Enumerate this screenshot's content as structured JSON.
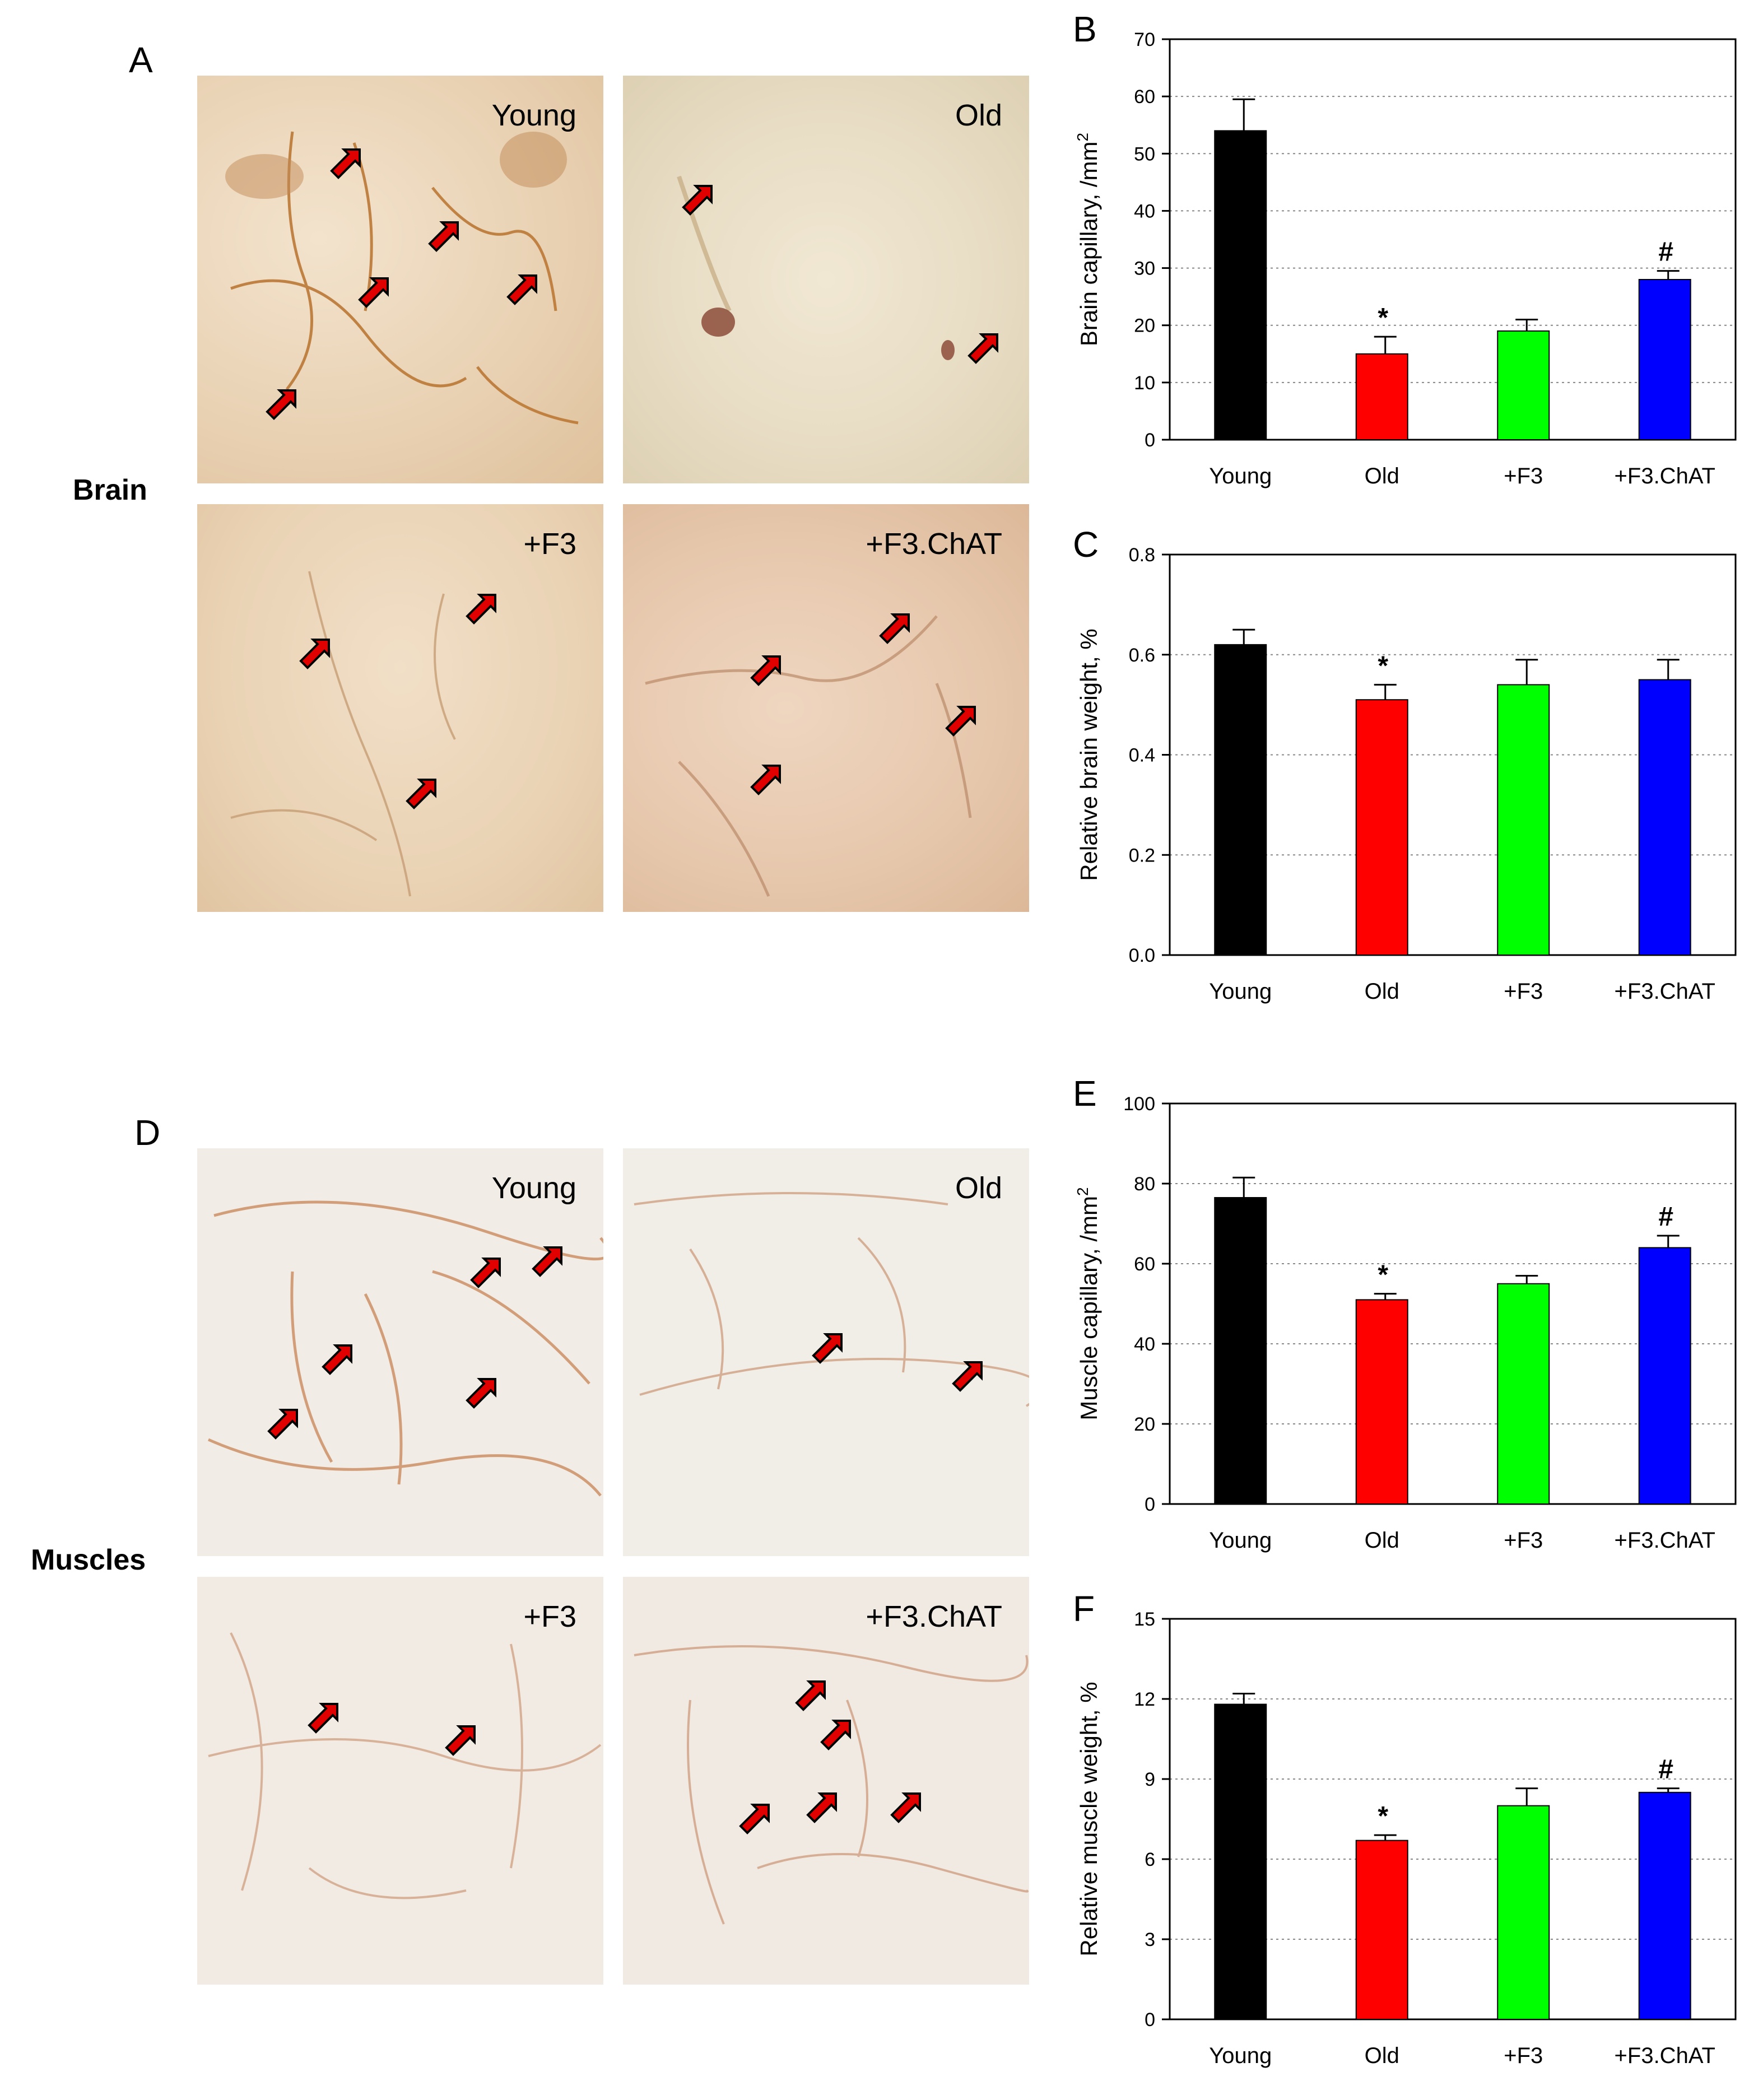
{
  "panel_letters": {
    "a": "A",
    "b": "B",
    "c": "C",
    "d": "D",
    "e": "E",
    "f": "F"
  },
  "row_labels": {
    "brain": "Brain",
    "muscles": "Muscles"
  },
  "micrographs": {
    "brain": [
      "Young",
      "Old",
      "+F3",
      "+F3.ChAT"
    ],
    "muscles": [
      "Young",
      "Old",
      "+F3",
      "+F3.ChAT"
    ]
  },
  "colors": {
    "young": "#000000",
    "old": "#ff0000",
    "f3": "#00ff00",
    "f3chat": "#0000ff",
    "arrow": "#e00000"
  },
  "chart_data": [
    {
      "id": "B",
      "type": "bar",
      "ylabel": "Brain capillary, /mm",
      "ylabel_sup": "2",
      "categories": [
        "Young",
        "Old",
        "+F3",
        "+F3.ChAT"
      ],
      "values": [
        54,
        15,
        19,
        28
      ],
      "errors": [
        5.5,
        3,
        2,
        1.5
      ],
      "annotations": [
        "",
        "*",
        "",
        "#"
      ],
      "ylim": [
        0,
        70
      ],
      "yticks": [
        0,
        10,
        20,
        30,
        40,
        50,
        60,
        70
      ],
      "tick_labels": [
        "0",
        "10",
        "20",
        "30",
        "40",
        "50",
        "60",
        "70"
      ],
      "grid": true
    },
    {
      "id": "C",
      "type": "bar",
      "ylabel": "Relative brain weight, %",
      "ylabel_sup": "",
      "categories": [
        "Young",
        "Old",
        "+F3",
        "+F3.ChAT"
      ],
      "values": [
        0.62,
        0.51,
        0.54,
        0.55
      ],
      "errors": [
        0.03,
        0.03,
        0.05,
        0.04
      ],
      "annotations": [
        "",
        "*",
        "",
        ""
      ],
      "ylim": [
        0,
        0.8
      ],
      "yticks": [
        0,
        0.2,
        0.4,
        0.6,
        0.8
      ],
      "tick_labels": [
        "0.0",
        "0.2",
        "0.4",
        "0.6",
        "0.8"
      ],
      "grid": true
    },
    {
      "id": "E",
      "type": "bar",
      "ylabel": "Muscle capillary, /mm",
      "ylabel_sup": "2",
      "categories": [
        "Young",
        "Old",
        "+F3",
        "+F3.ChAT"
      ],
      "values": [
        76.5,
        51,
        55,
        64
      ],
      "errors": [
        5,
        1.5,
        2,
        3
      ],
      "annotations": [
        "",
        "*",
        "",
        "#"
      ],
      "ylim": [
        0,
        100
      ],
      "yticks": [
        0,
        20,
        40,
        60,
        80,
        100
      ],
      "tick_labels": [
        "0",
        "20",
        "40",
        "60",
        "80",
        "100"
      ],
      "grid": true
    },
    {
      "id": "F",
      "type": "bar",
      "ylabel": "Relative muscle weight, %",
      "ylabel_sup": "",
      "categories": [
        "Young",
        "Old",
        "+F3",
        "+F3.ChAT"
      ],
      "values": [
        11.8,
        6.7,
        8.0,
        8.5
      ],
      "errors": [
        0.4,
        0.2,
        0.65,
        0.15
      ],
      "annotations": [
        "",
        "*",
        "",
        "#"
      ],
      "ylim": [
        0,
        15
      ],
      "yticks": [
        0,
        3,
        6,
        9,
        12,
        15
      ],
      "tick_labels": [
        "0",
        "3",
        "6",
        "9",
        "12",
        "15"
      ],
      "grid": true
    }
  ]
}
